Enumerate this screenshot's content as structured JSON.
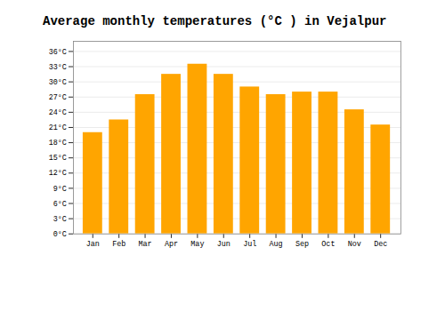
{
  "chart_data": {
    "type": "bar",
    "title": "Average monthly temperatures (°C ) in Vejalpur",
    "categories": [
      "Jan",
      "Feb",
      "Mar",
      "Apr",
      "May",
      "Jun",
      "Jul",
      "Aug",
      "Sep",
      "Oct",
      "Nov",
      "Dec"
    ],
    "values": [
      20,
      22.5,
      27.5,
      31.5,
      33.5,
      31.5,
      29,
      27.5,
      28,
      28,
      24.5,
      21.5
    ],
    "color": "#FFA500",
    "ylim": [
      0,
      38
    ],
    "yticks": [
      {
        "value": 0,
        "label": "0°C"
      },
      {
        "value": 3,
        "label": "3°C"
      },
      {
        "value": 6,
        "label": "6°C"
      },
      {
        "value": 9,
        "label": "9°C"
      },
      {
        "value": 12,
        "label": "12°C"
      },
      {
        "value": 15,
        "label": "15°C"
      },
      {
        "value": 18,
        "label": "18°C"
      },
      {
        "value": 21,
        "label": "21°C"
      },
      {
        "value": 24,
        "label": "24°C"
      },
      {
        "value": 27,
        "label": "27°C"
      },
      {
        "value": 30,
        "label": "30°C"
      },
      {
        "value": 33,
        "label": "33°C"
      },
      {
        "value": 36,
        "label": "36°C"
      }
    ],
    "grid": true
  }
}
